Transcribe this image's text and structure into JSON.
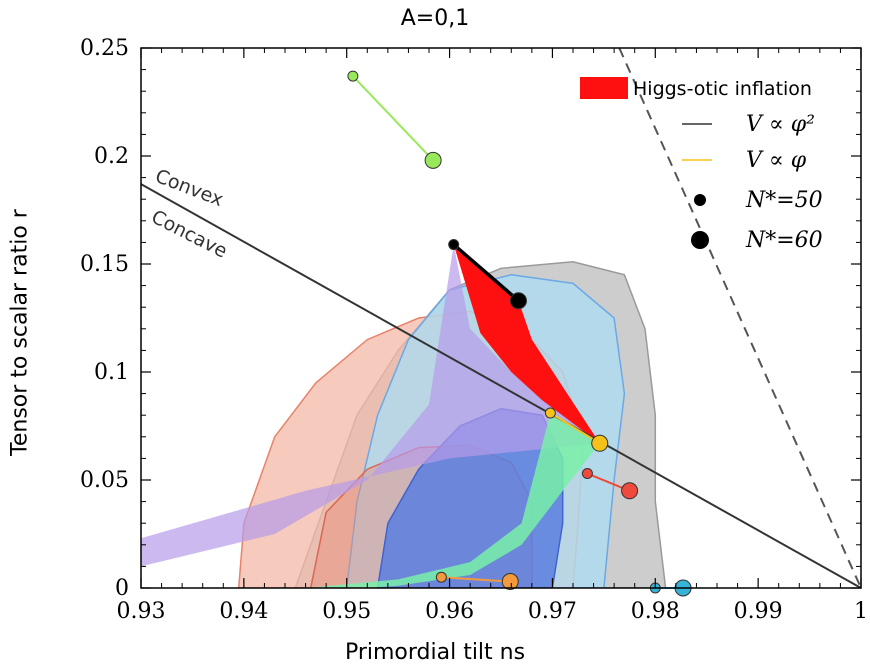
{
  "chart_data": {
    "type": "line",
    "title": "A=0,1",
    "xlabel": "Primordial tilt ns",
    "ylabel": "Tensor to scalar ratio r",
    "xlim": [
      0.93,
      1.0
    ],
    "ylim": [
      0,
      0.25
    ],
    "xticks": [
      "0.93",
      "0.94",
      "0.95",
      "0.96",
      "0.97",
      "0.98",
      "0.99",
      "1"
    ],
    "yticks": [
      "0",
      "0.05",
      "0.1",
      "0.15",
      "0.2",
      "0.25"
    ],
    "grid": false,
    "legend_position": "top-right",
    "legend": [
      {
        "label": "Higgs-otic inflation",
        "kind": "patch",
        "color": "#ff1010"
      },
      {
        "label": "V ∝ φ²",
        "kind": "line",
        "color": "#333333"
      },
      {
        "label": "V ∝ φ",
        "kind": "line",
        "color": "#f6c21a"
      },
      {
        "label": "N*=50",
        "kind": "small-dot",
        "color": "#000000"
      },
      {
        "label": "N*=60",
        "kind": "large-dot",
        "color": "#000000"
      }
    ],
    "annotations": [
      "Convex",
      "Concave"
    ],
    "lines": [
      {
        "name": "convex-concave-boundary",
        "style": "solid",
        "color": "#333333",
        "points": [
          [
            0.93,
            0.187
          ],
          [
            1.0,
            0.0
          ]
        ]
      },
      {
        "name": "dashed-boundary",
        "style": "dashed",
        "color": "#555555",
        "points": [
          [
            0.9765,
            0.25
          ],
          [
            1.0,
            0.0
          ]
        ]
      }
    ],
    "series": [
      {
        "color": "#98e85c",
        "points": [
          [
            0.9506,
            0.237
          ],
          [
            0.9584,
            0.198
          ]
        ]
      },
      {
        "color": "#000000",
        "points": [
          [
            0.9604,
            0.159
          ],
          [
            0.9667,
            0.133
          ]
        ]
      },
      {
        "color": "#f6c21a",
        "points": [
          [
            0.9698,
            0.081
          ],
          [
            0.9746,
            0.067
          ]
        ]
      },
      {
        "color": "#ef4a3c",
        "points": [
          [
            0.9734,
            0.053
          ],
          [
            0.9775,
            0.045
          ]
        ]
      },
      {
        "color": "#f29a3c",
        "points": [
          [
            0.9592,
            0.005
          ],
          [
            0.9659,
            0.003
          ]
        ]
      },
      {
        "color": "#36b3d6",
        "points": [
          [
            0.98,
            0.0
          ],
          [
            0.9827,
            0.0
          ]
        ]
      }
    ]
  }
}
